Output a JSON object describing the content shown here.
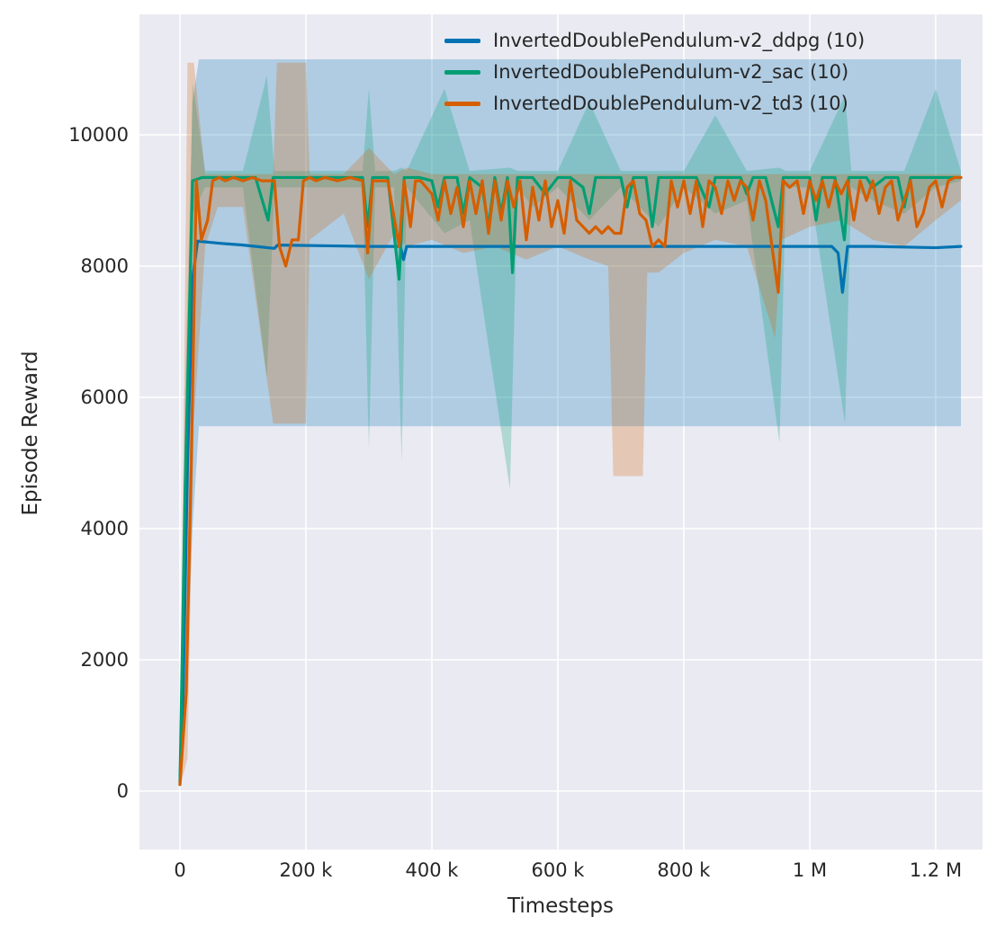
{
  "figure": {
    "background": "#ffffff",
    "axes_background": "#eaeaf2",
    "grid_color": "#ffffff",
    "text_color": "#262626"
  },
  "chart_data": {
    "type": "line",
    "title": "",
    "xlabel": "Timesteps",
    "ylabel": "Episode Reward",
    "x_unit_note": "x_k arrays are in thousands of timesteps",
    "xlim_k": [
      -64,
      1275
    ],
    "ylim": [
      -890,
      11835
    ],
    "grid": true,
    "legend_position": "upper center",
    "xticks": {
      "values_k": [
        0,
        200,
        400,
        600,
        800,
        1000,
        1200
      ],
      "labels": [
        "0",
        "200 k",
        "400 k",
        "600 k",
        "800 k",
        "1 M",
        "1.2 M"
      ]
    },
    "yticks": {
      "values": [
        0,
        2000,
        4000,
        6000,
        8000,
        10000
      ],
      "labels": [
        "0",
        "2000",
        "4000",
        "6000",
        "8000",
        "10000"
      ]
    },
    "series": [
      {
        "name": "InvertedDoublePendulum-v2_ddpg (10)",
        "color": "#0173b2",
        "x_k": [
          0,
          5,
          12,
          20,
          28,
          60,
          100,
          150,
          155,
          300,
          350,
          355,
          360,
          500,
          700,
          900,
          1035,
          1045,
          1052,
          1060,
          1100,
          1200,
          1240
        ],
        "y": [
          150,
          1500,
          5000,
          7800,
          8380,
          8350,
          8320,
          8270,
          8320,
          8300,
          8300,
          8100,
          8300,
          8300,
          8300,
          8300,
          8300,
          8200,
          7600,
          8300,
          8300,
          8280,
          8300
        ],
        "band": {
          "x_k": [
            0,
            8,
            20,
            30,
            1240
          ],
          "low": [
            100,
            1000,
            4000,
            5560,
            5560
          ],
          "high": [
            250,
            6000,
            10500,
            11150,
            11150
          ]
        }
      },
      {
        "name": "InvertedDoublePendulum-v2_sac (10)",
        "color": "#029e73",
        "x_k": [
          0,
          8,
          20,
          35,
          60,
          90,
          120,
          140,
          148,
          170,
          200,
          230,
          260,
          290,
          298,
          306,
          330,
          348,
          356,
          380,
          400,
          410,
          420,
          440,
          450,
          460,
          480,
          490,
          500,
          510,
          520,
          528,
          536,
          560,
          580,
          600,
          620,
          640,
          650,
          660,
          680,
          700,
          710,
          720,
          740,
          750,
          760,
          780,
          800,
          820,
          840,
          850,
          870,
          890,
          900,
          910,
          930,
          950,
          958,
          980,
          1000,
          1010,
          1020,
          1040,
          1055,
          1062,
          1070,
          1090,
          1100,
          1120,
          1140,
          1150,
          1160,
          1180,
          1200,
          1220,
          1240
        ],
        "y": [
          100,
          4500,
          9300,
          9350,
          9350,
          9350,
          9350,
          8700,
          9350,
          9350,
          9350,
          9350,
          9350,
          9350,
          8600,
          9350,
          9350,
          7800,
          9350,
          9350,
          9300,
          8900,
          9350,
          9350,
          8800,
          9350,
          9200,
          8600,
          9350,
          8800,
          9350,
          7900,
          9350,
          9350,
          9100,
          9350,
          9350,
          9200,
          8800,
          9350,
          9350,
          9350,
          8900,
          9350,
          9350,
          8600,
          9350,
          9350,
          9350,
          9350,
          8900,
          9350,
          9350,
          9350,
          9100,
          9350,
          9350,
          8600,
          9350,
          9350,
          9350,
          8700,
          9350,
          9350,
          8400,
          9350,
          9350,
          9350,
          9200,
          9350,
          9350,
          8900,
          9350,
          9350,
          9350,
          9350,
          9350
        ],
        "band": {
          "x_k": [
            0,
            20,
            40,
            100,
            138,
            150,
            200,
            290,
            300,
            310,
            340,
            352,
            360,
            420,
            460,
            524,
            536,
            560,
            600,
            650,
            700,
            760,
            800,
            850,
            900,
            952,
            962,
            1000,
            1056,
            1066,
            1100,
            1150,
            1200,
            1240
          ],
          "low": [
            50,
            8800,
            9200,
            9200,
            6300,
            9200,
            9200,
            9200,
            5200,
            9200,
            9200,
            5000,
            9200,
            8500,
            8700,
            4600,
            9200,
            8900,
            9200,
            8700,
            9200,
            8600,
            9200,
            8800,
            9000,
            5300,
            9200,
            9200,
            5600,
            9200,
            9000,
            8800,
            9200,
            9300
          ],
          "high": [
            300,
            10800,
            9450,
            9450,
            10900,
            9450,
            9450,
            9450,
            10700,
            9450,
            9450,
            9500,
            9450,
            10700,
            9450,
            9500,
            9450,
            9450,
            9450,
            10500,
            9450,
            9450,
            9450,
            10300,
            9450,
            9500,
            9450,
            9450,
            10600,
            9450,
            9450,
            9450,
            10700,
            9450
          ]
        }
      },
      {
        "name": "InvertedDoublePendulum-v2_td3 (10)",
        "color": "#d55e00",
        "x_k": [
          0,
          10,
          18,
          26,
          34,
          44,
          52,
          62,
          72,
          85,
          100,
          115,
          130,
          150,
          158,
          168,
          178,
          188,
          196,
          206,
          216,
          230,
          250,
          270,
          290,
          298,
          306,
          330,
          348,
          356,
          366,
          374,
          382,
          400,
          410,
          420,
          430,
          440,
          450,
          460,
          470,
          480,
          490,
          500,
          510,
          520,
          530,
          540,
          550,
          560,
          570,
          580,
          590,
          600,
          610,
          620,
          630,
          640,
          650,
          660,
          670,
          680,
          690,
          700,
          710,
          720,
          730,
          740,
          750,
          760,
          770,
          780,
          790,
          800,
          810,
          820,
          830,
          840,
          850,
          860,
          870,
          880,
          890,
          900,
          910,
          920,
          930,
          940,
          950,
          958,
          968,
          980,
          990,
          1000,
          1010,
          1020,
          1030,
          1040,
          1050,
          1060,
          1070,
          1080,
          1090,
          1100,
          1110,
          1120,
          1130,
          1140,
          1150,
          1160,
          1170,
          1180,
          1190,
          1200,
          1210,
          1220,
          1230,
          1240
        ],
        "y": [
          100,
          1500,
          5000,
          9300,
          8400,
          8700,
          9300,
          9350,
          9300,
          9350,
          9300,
          9350,
          9300,
          9300,
          8300,
          8000,
          8400,
          8400,
          9300,
          9350,
          9300,
          9350,
          9300,
          9350,
          9300,
          8200,
          9300,
          9300,
          8300,
          9300,
          8600,
          9300,
          9300,
          9100,
          8700,
          9300,
          8800,
          9200,
          8600,
          9300,
          8800,
          9300,
          8500,
          9300,
          8700,
          9300,
          8900,
          9300,
          8400,
          9200,
          8700,
          9300,
          8600,
          9000,
          8500,
          9300,
          8700,
          8600,
          8500,
          8600,
          8500,
          8600,
          8500,
          8500,
          9200,
          9300,
          8800,
          8700,
          8300,
          8400,
          8300,
          9300,
          8900,
          9300,
          8800,
          9300,
          8600,
          9300,
          9200,
          8800,
          9300,
          9000,
          9300,
          9200,
          8700,
          9300,
          9000,
          8300,
          7600,
          9300,
          9200,
          9300,
          8800,
          9300,
          9000,
          9300,
          8900,
          9300,
          9100,
          9300,
          8700,
          9300,
          9000,
          9300,
          8800,
          9200,
          9300,
          8700,
          9000,
          9300,
          8600,
          8800,
          9200,
          9300,
          8900,
          9300,
          9350,
          9350
        ],
        "band": {
          "x_k": [
            0,
            12,
            22,
            40,
            60,
            100,
            148,
            154,
            200,
            206,
            260,
            300,
            340,
            360,
            400,
            450,
            500,
            550,
            600,
            650,
            680,
            688,
            735,
            742,
            760,
            800,
            850,
            900,
            945,
            955,
            1000,
            1050,
            1100,
            1150,
            1200,
            1240
          ],
          "low": [
            50,
            500,
            5600,
            8300,
            8900,
            8900,
            5600,
            5600,
            5600,
            8400,
            8800,
            7800,
            8500,
            8300,
            8400,
            8200,
            8300,
            8100,
            8300,
            8100,
            8000,
            4800,
            4800,
            7900,
            7900,
            8200,
            8400,
            8300,
            6900,
            8400,
            8600,
            8700,
            8400,
            8300,
            8700,
            9000
          ],
          "high": [
            400,
            11100,
            11100,
            9400,
            9400,
            9400,
            9400,
            11100,
            11100,
            9400,
            9400,
            9800,
            9400,
            9500,
            9400,
            9400,
            9400,
            9400,
            9400,
            9400,
            9400,
            9400,
            9400,
            9400,
            9400,
            9400,
            9400,
            9400,
            9400,
            9400,
            9400,
            9400,
            9400,
            9400,
            9400,
            9400
          ]
        }
      }
    ]
  }
}
